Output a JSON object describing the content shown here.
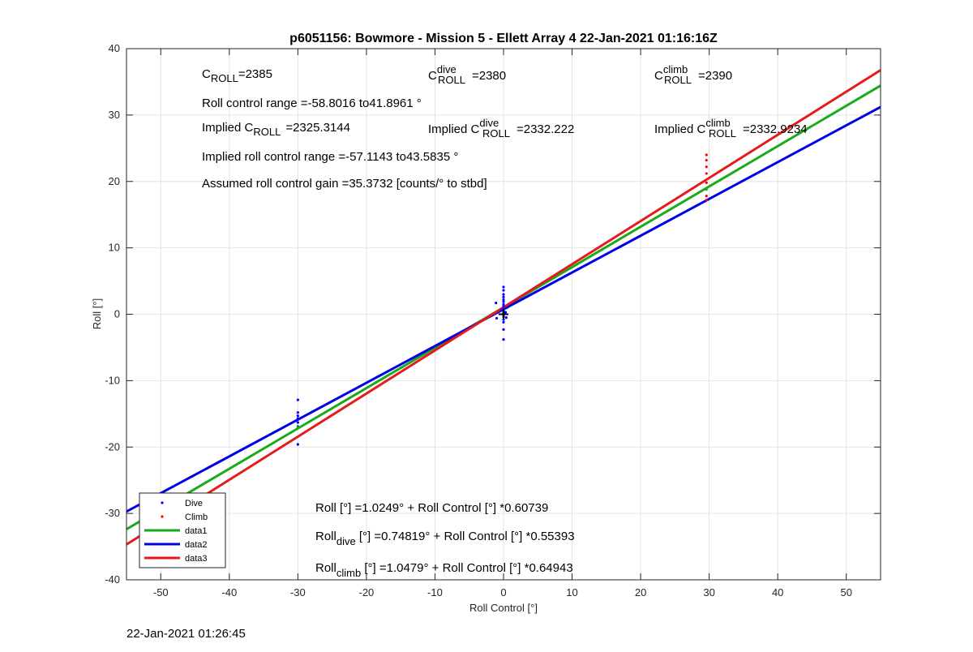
{
  "chart_data": {
    "type": "scatter",
    "title": "p6051156: Bowmore - Mission 5 - Ellett Array 4 22-Jan-2021 01:16:16Z",
    "xlabel": "Roll Control [°]",
    "ylabel": "Roll [°]",
    "xlim": [
      -55,
      55
    ],
    "ylim": [
      -40,
      40
    ],
    "xticks": [
      -50,
      -40,
      -30,
      -20,
      -10,
      0,
      10,
      20,
      30,
      40,
      50
    ],
    "yticks": [
      -40,
      -30,
      -20,
      -10,
      0,
      10,
      20,
      30,
      40
    ],
    "grid": true,
    "legend_position": "bottom-left",
    "series": [
      {
        "name": "Dive",
        "kind": "points",
        "color": "#0000ff",
        "points": [
          [
            -30,
            -12.9
          ],
          [
            -30,
            -14.8
          ],
          [
            -30,
            -15.3
          ],
          [
            -30,
            -15.7
          ],
          [
            -30,
            -16.3
          ],
          [
            -30,
            -16.9
          ],
          [
            -30,
            -19.6
          ],
          [
            -50,
            -28.5
          ],
          [
            0,
            4.1
          ],
          [
            0,
            3.6
          ],
          [
            0,
            3.0
          ],
          [
            0,
            2.6
          ],
          [
            0,
            2.2
          ],
          [
            0,
            1.9
          ],
          [
            0,
            1.5
          ],
          [
            0,
            1.2
          ],
          [
            0,
            0.8
          ],
          [
            0,
            0.5
          ],
          [
            0,
            0.2
          ],
          [
            0,
            -0.1
          ],
          [
            0,
            -0.4
          ],
          [
            0,
            -0.8
          ],
          [
            0,
            -1.2
          ],
          [
            0,
            -2.3
          ],
          [
            0,
            -3.8
          ],
          [
            0.3,
            0.3
          ],
          [
            -0.3,
            0.6
          ],
          [
            0.4,
            -0.5
          ],
          [
            -1.1,
            1.7
          ],
          [
            -1.0,
            -0.6
          ],
          [
            0.5,
            1.0
          ]
        ]
      },
      {
        "name": "Climb",
        "kind": "points",
        "color": "#ff0000",
        "points": [
          [
            29.6,
            24.0
          ],
          [
            29.6,
            23.2
          ],
          [
            29.6,
            22.2
          ],
          [
            29.6,
            21.2
          ],
          [
            29.6,
            19.8
          ],
          [
            29.6,
            17.8
          ],
          [
            29.6,
            17.2
          ],
          [
            -50,
            -30.3
          ]
        ]
      },
      {
        "name": "data1",
        "kind": "line",
        "color": "#1aaa1a",
        "intercept": 1.0249,
        "slope": 0.60739
      },
      {
        "name": "data2",
        "kind": "line",
        "color": "#0000e6",
        "intercept": 0.74819,
        "slope": 0.55393
      },
      {
        "name": "data3",
        "kind": "line",
        "color": "#e61a1a",
        "intercept": 1.0479,
        "slope": 0.64943
      }
    ],
    "extra_marks": [
      {
        "name": "Plus marker",
        "x": 0,
        "y": 0,
        "color": "#000000"
      },
      {
        "name": "Green dot",
        "x": -30,
        "y": -17.0,
        "color": "#1aaa1a"
      },
      {
        "name": "Green dot 2",
        "x": 29.6,
        "y": 18.8,
        "color": "#1aaa1a"
      }
    ]
  },
  "annotations": {
    "c_roll_main": "C",
    "c_roll_sub": "ROLL",
    "c_roll_value": "=2385",
    "c_dive_main": "C",
    "c_dive_sup": "dive",
    "c_dive_sub": "ROLL",
    "c_dive_value": "=2380",
    "c_climb_main": "C",
    "c_climb_sup": "climb",
    "c_climb_sub": "ROLL",
    "c_climb_value": "=2390",
    "roll_range": "Roll control range =-58.8016 to41.8961 °",
    "implied_c_prefix": "Implied C",
    "implied_c_sub": "ROLL",
    "implied_c_value": "=2325.3144",
    "implied_dive_prefix": "Implied C",
    "implied_dive_sup": "dive",
    "implied_dive_sub": "ROLL",
    "implied_dive_value": "=2332.222",
    "implied_climb_prefix": "Implied C",
    "implied_climb_sup": "climb",
    "implied_climb_sub": "ROLL",
    "implied_climb_value": "=2332.9234",
    "implied_range": "Implied roll control range =-57.1143 to43.5835 °",
    "gain": "Assumed roll control gain =35.3732 [counts/° to stbd]",
    "eq1": "Roll [°] =1.0249° + Roll Control [°] *0.60739",
    "eq2_main": "Roll",
    "eq2_sub": "dive",
    "eq2_rest": " [°] =0.74819° + Roll Control [°] *0.55393",
    "eq3_main": "Roll",
    "eq3_sub": "climb",
    "eq3_rest": " [°] =1.0479° + Roll Control [°] *0.64943"
  },
  "footer": {
    "timestamp": "22-Jan-2021 01:26:45"
  }
}
